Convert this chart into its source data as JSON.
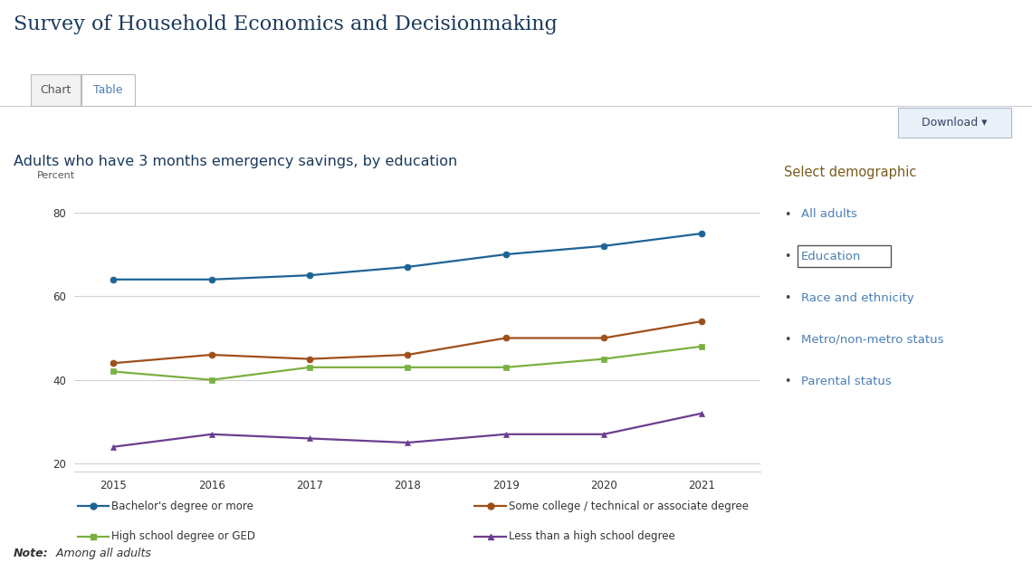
{
  "title": "Survey of Household Economics and Decisionmaking",
  "subtitle": "Adults who have 3 months emergency savings, by education",
  "ylabel": "Percent",
  "note_bold": "Note:",
  "note_italic": " Among all adults",
  "years": [
    2015,
    2016,
    2017,
    2018,
    2019,
    2020,
    2021
  ],
  "series": [
    {
      "name": "Bachelor's degree or more",
      "values": [
        64,
        64,
        65,
        67,
        70,
        72,
        75
      ],
      "color": "#1e6395",
      "marker": "o",
      "markersize": 5
    },
    {
      "name": "Some college / technical or associate degree",
      "values": [
        44,
        46,
        45,
        46,
        50,
        50,
        54
      ],
      "color": "#9e4f1a",
      "marker": "o",
      "markersize": 5
    },
    {
      "name": "High school degree or GED",
      "values": [
        42,
        40,
        43,
        43,
        43,
        45,
        48
      ],
      "color": "#7ab040",
      "marker": "s",
      "markersize": 5
    },
    {
      "name": "Less than a high school degree",
      "values": [
        24,
        27,
        26,
        25,
        27,
        27,
        32
      ],
      "color": "#6b3d8f",
      "marker": "^",
      "markersize": 5
    }
  ],
  "ylim": [
    18,
    85
  ],
  "yticks": [
    20,
    40,
    60,
    80
  ],
  "sidebar_title": "Select demographic",
  "sidebar_items": [
    "All adults",
    "Education",
    "Race and ethnicity",
    "Metro/non-metro status",
    "Parental status"
  ],
  "sidebar_active": "Education",
  "sidebar_color": "#4a7fb5",
  "title_color": "#1a3a5c",
  "subtitle_color": "#1a3a5c",
  "tab_chart_text": "Chart",
  "tab_table_text": "Table",
  "download_text": "Download ▾",
  "background_color": "#ffffff",
  "grid_color": "#d0d0d0",
  "legend_items_col1": [
    "Bachelor's degree or more",
    "High school degree or GED"
  ],
  "legend_items_col2": [
    "Some college / technical or associate degree",
    "Less than a high school degree"
  ]
}
